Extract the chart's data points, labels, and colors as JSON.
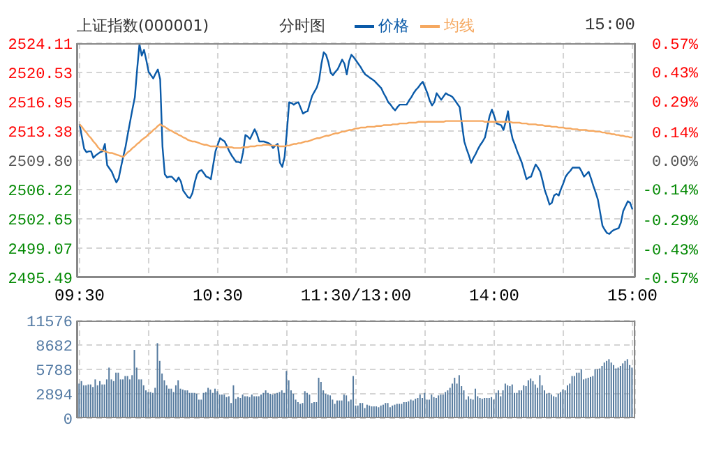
{
  "chart_data": [
    {
      "type": "line",
      "title": "上证指数(000001)",
      "subtitle": "分时图",
      "annotations": [
        "15:00"
      ],
      "legend": "top",
      "grid": true,
      "categories": [
        "09:30",
        null,
        null,
        null,
        null,
        null,
        null,
        null,
        null,
        null,
        null,
        null,
        null,
        null,
        null,
        null,
        null,
        null,
        null,
        null,
        null,
        null,
        null,
        null,
        null,
        null,
        null,
        null,
        null,
        null,
        null,
        null,
        null,
        null,
        null,
        null,
        null,
        null,
        null,
        null,
        null,
        null,
        null,
        null,
        null,
        null,
        null,
        null,
        null,
        null,
        null,
        null,
        null,
        null,
        null,
        null,
        null,
        null,
        null,
        null,
        "10:30",
        null,
        null,
        null,
        null,
        null,
        null,
        null,
        null,
        null,
        null,
        null,
        null,
        null,
        null,
        null,
        null,
        null,
        null,
        null,
        null,
        null,
        null,
        null,
        null,
        null,
        null,
        null,
        null,
        null,
        null,
        null,
        null,
        null,
        null,
        null,
        null,
        null,
        null,
        null,
        null,
        null,
        null,
        null,
        null,
        null,
        null,
        null,
        null,
        null,
        null,
        null,
        null,
        null,
        null,
        null,
        null,
        null,
        null,
        null,
        "11:30/13:00",
        null,
        null,
        null,
        null,
        null,
        null,
        null,
        null,
        null,
        null,
        null,
        null,
        null,
        null,
        null,
        null,
        null,
        null,
        null,
        null,
        null,
        null,
        null,
        null,
        null,
        null,
        null,
        null,
        null,
        null,
        null,
        null,
        null,
        null,
        null,
        null,
        null,
        null,
        null,
        null,
        null,
        null,
        null,
        null,
        null,
        null,
        null,
        null,
        null,
        null,
        null,
        null,
        null,
        null,
        null,
        null,
        null,
        null,
        null,
        "14:00",
        null,
        null,
        null,
        null,
        null,
        null,
        null,
        null,
        null,
        null,
        null,
        null,
        null,
        null,
        null,
        null,
        null,
        null,
        null,
        null,
        null,
        null,
        null,
        null,
        null,
        null,
        null,
        null,
        null,
        null,
        null,
        null,
        null,
        null,
        null,
        null,
        null,
        null,
        null,
        null,
        null,
        null,
        null,
        null,
        null,
        null,
        null,
        null,
        null,
        null,
        null,
        null,
        null,
        null,
        null,
        null,
        null,
        null,
        null,
        "15:00"
      ],
      "ylim": [
        2495.49,
        2524.11
      ],
      "yticks": [
        {
          "value": 2495.49,
          "label": "2495.49"
        },
        {
          "value": 2499.07,
          "label": "2499.07"
        },
        {
          "value": 2502.65,
          "label": "2502.65"
        },
        {
          "value": 2506.22,
          "label": "2506.22"
        },
        {
          "value": 2509.8,
          "label": "2509.80"
        },
        {
          "value": 2513.38,
          "label": "2513.38"
        },
        {
          "value": 2516.95,
          "label": "2516.95"
        },
        {
          "value": 2520.53,
          "label": "2520.53"
        },
        {
          "value": 2524.11,
          "label": "2524.11"
        }
      ],
      "y2lim": [
        -0.57,
        0.57
      ],
      "y2ticks": [
        {
          "value": -0.57,
          "label": "-0.57%"
        },
        {
          "value": -0.43,
          "label": "-0.43%"
        },
        {
          "value": -0.29,
          "label": "-0.29%"
        },
        {
          "value": -0.14,
          "label": "-0.14%"
        },
        {
          "value": 0,
          "label": "0.00%"
        },
        {
          "value": 0.14,
          "label": "0.14%"
        },
        {
          "value": 0.29,
          "label": "0.29%"
        },
        {
          "value": 0.43,
          "label": "0.43%"
        },
        {
          "value": 0.57,
          "label": "0.57%"
        }
      ],
      "series": [
        {
          "name": "价格",
          "color": "#0a5aa8",
          "values": [
            2514.2,
            2512.7,
            2511.2,
            2510.8,
            2510.9,
            2510.9,
            2510.1,
            2510.4,
            2510.6,
            2510.8,
            2510.9,
            2511.8,
            2509.2,
            2508.8,
            2508.4,
            2507.7,
            2507.1,
            2507.6,
            2509.0,
            2510.3,
            2511.5,
            2513.1,
            2514.6,
            2516.1,
            2517.5,
            2520.9,
            2524.0,
            2522.6,
            2523.3,
            2522.0,
            2520.6,
            2520.2,
            2519.8,
            2520.4,
            2520.9,
            2519.7,
            2511.5,
            2508.1,
            2507.7,
            2507.8,
            2507.8,
            2507.5,
            2507.2,
            2507.7,
            2507.2,
            2506.1,
            2505.7,
            2505.3,
            2505.2,
            2505.8,
            2507.1,
            2508.1,
            2508.5,
            2508.6,
            2508.2,
            2507.8,
            2507.7,
            2507.5,
            2509.2,
            2510.9,
            2511.7,
            2512.5,
            2512.3,
            2512.1,
            2511.5,
            2510.9,
            2510.4,
            2510.0,
            2509.6,
            2509.6,
            2509.5,
            2510.8,
            2512.9,
            2512.7,
            2512.4,
            2513.0,
            2513.6,
            2513.0,
            2512.1,
            2512.1,
            2512.1,
            2512.0,
            2511.9,
            2511.7,
            2511.3,
            2511.6,
            2511.8,
            2509.5,
            2509.0,
            2510.2,
            2513.3,
            2516.9,
            2516.8,
            2516.6,
            2516.8,
            2516.9,
            2516.2,
            2515.5,
            2515.7,
            2515.8,
            2516.8,
            2517.7,
            2518.2,
            2518.7,
            2519.6,
            2521.6,
            2523.0,
            2522.7,
            2521.8,
            2520.5,
            2520.2,
            2520.6,
            2520.9,
            2521.5,
            2522.1,
            2521.6,
            2520.3,
            2521.9,
            2522.7,
            2522.4,
            2522.0,
            2521.6,
            2521.2,
            2520.7,
            2520.3,
            2520.1,
            2519.9,
            2519.7,
            2519.5,
            2519.2,
            2518.9,
            2518.6,
            2518.0,
            2517.5,
            2516.9,
            2516.6,
            2516.2,
            2515.9,
            2516.3,
            2516.6,
            2516.6,
            2516.6,
            2516.6,
            2517.1,
            2517.5,
            2518.0,
            2518.4,
            2518.7,
            2519.1,
            2519.4,
            2518.7,
            2518.0,
            2517.1,
            2516.5,
            2516.9,
            2518.0,
            2517.6,
            2517.2,
            2517.6,
            2518.0,
            2517.8,
            2517.7,
            2517.5,
            2517.1,
            2516.7,
            2516.3,
            2514.2,
            2512.1,
            2511.2,
            2510.4,
            2509.5,
            2510.1,
            2510.6,
            2511.2,
            2511.7,
            2512.1,
            2512.6,
            2513.9,
            2515.2,
            2516.0,
            2515.2,
            2514.3,
            2514.2,
            2514.1,
            2513.5,
            2514.5,
            2515.8,
            2513.7,
            2512.4,
            2511.7,
            2510.9,
            2510.2,
            2509.5,
            2508.5,
            2507.5,
            2507.7,
            2507.8,
            2508.6,
            2509.3,
            2508.9,
            2508.4,
            2507.3,
            2506.1,
            2505.3,
            2504.4,
            2504.6,
            2505.5,
            2505.7,
            2505.5,
            2506.3,
            2507.0,
            2507.8,
            2508.2,
            2508.5,
            2508.9,
            2508.9,
            2508.9,
            2508.9,
            2508.4,
            2507.8,
            2508.1,
            2508.4,
            2507.6,
            2506.7,
            2505.9,
            2505.0,
            2503.4,
            2501.8,
            2501.3,
            2500.9,
            2500.8,
            2501.1,
            2501.3,
            2501.4,
            2501.5,
            2502.2,
            2503.6,
            2504.2,
            2504.8,
            2504.6,
            2503.8
          ]
        },
        {
          "name": "均线",
          "color": "#f5a860",
          "values": [
            2514.2,
            2513.9,
            2513.5,
            2513.2,
            2512.8,
            2512.5,
            2512.1,
            2511.8,
            2511.4,
            2511.1,
            2511.0,
            2510.9,
            2510.8,
            2510.7,
            2510.7,
            2510.6,
            2510.5,
            2510.4,
            2510.3,
            2510.2,
            2510.5,
            2510.8,
            2511.0,
            2511.3,
            2511.5,
            2511.8,
            2512.0,
            2512.3,
            2512.5,
            2512.7,
            2513.0,
            2513.2,
            2513.5,
            2513.7,
            2514.0,
            2514.2,
            2514.0,
            2513.9,
            2513.7,
            2513.5,
            2513.4,
            2513.2,
            2513.1,
            2512.9,
            2512.8,
            2512.6,
            2512.5,
            2512.3,
            2512.2,
            2512.1,
            2512.1,
            2512.0,
            2511.9,
            2511.8,
            2511.7,
            2511.7,
            2511.6,
            2511.5,
            2511.5,
            2511.5,
            2511.5,
            2511.4,
            2511.4,
            2511.4,
            2511.4,
            2511.4,
            2511.4,
            2511.3,
            2511.3,
            2511.3,
            2511.3,
            2511.4,
            2511.4,
            2511.4,
            2511.5,
            2511.5,
            2511.5,
            2511.6,
            2511.6,
            2511.6,
            2511.7,
            2511.7,
            2511.7,
            2511.6,
            2511.6,
            2511.6,
            2511.6,
            2511.5,
            2511.5,
            2511.5,
            2511.6,
            2511.6,
            2511.7,
            2511.8,
            2511.8,
            2511.9,
            2511.9,
            2512.0,
            2512.1,
            2512.1,
            2512.2,
            2512.3,
            2512.4,
            2512.5,
            2512.5,
            2512.6,
            2512.7,
            2512.8,
            2512.8,
            2512.9,
            2513.0,
            2513.1,
            2513.1,
            2513.2,
            2513.3,
            2513.3,
            2513.4,
            2513.5,
            2513.5,
            2513.6,
            2513.7,
            2513.7,
            2513.8,
            2513.8,
            2513.8,
            2513.9,
            2513.9,
            2513.9,
            2513.9,
            2514.0,
            2514.0,
            2514.0,
            2514.1,
            2514.1,
            2514.1,
            2514.1,
            2514.2,
            2514.2,
            2514.2,
            2514.3,
            2514.3,
            2514.3,
            2514.3,
            2514.4,
            2514.4,
            2514.4,
            2514.4,
            2514.5,
            2514.5,
            2514.5,
            2514.5,
            2514.5,
            2514.5,
            2514.5,
            2514.5,
            2514.5,
            2514.5,
            2514.5,
            2514.5,
            2514.6,
            2514.6,
            2514.6,
            2514.6,
            2514.6,
            2514.6,
            2514.6,
            2514.6,
            2514.6,
            2514.6,
            2514.6,
            2514.6,
            2514.6,
            2514.6,
            2514.6,
            2514.6,
            2514.6,
            2514.5,
            2514.5,
            2514.5,
            2514.5,
            2514.5,
            2514.5,
            2514.5,
            2514.5,
            2514.5,
            2514.5,
            2514.5,
            2514.5,
            2514.4,
            2514.4,
            2514.4,
            2514.4,
            2514.3,
            2514.3,
            2514.3,
            2514.2,
            2514.2,
            2514.2,
            2514.2,
            2514.1,
            2514.1,
            2514.1,
            2514.0,
            2514.0,
            2514.0,
            2513.9,
            2513.9,
            2513.9,
            2513.8,
            2513.8,
            2513.8,
            2513.7,
            2513.7,
            2513.7,
            2513.6,
            2513.6,
            2513.6,
            2513.5,
            2513.5,
            2513.5,
            2513.5,
            2513.4,
            2513.4,
            2513.4,
            2513.3,
            2513.3,
            2513.3,
            2513.2,
            2513.2,
            2513.1,
            2513.1,
            2513.0,
            2513.0,
            2512.9,
            2512.9,
            2512.8,
            2512.8,
            2512.7,
            2512.7,
            2512.6,
            2512.6
          ]
        }
      ]
    },
    {
      "type": "bar",
      "grid": true,
      "tick_labels": "y",
      "categories": [
        null,
        null,
        null,
        null,
        null,
        null,
        null,
        null,
        null,
        null,
        null,
        null,
        null,
        null,
        null,
        null,
        null,
        null,
        null,
        null,
        null,
        null,
        null,
        null,
        null,
        null,
        null,
        null,
        null,
        null,
        null,
        null,
        null,
        null,
        null,
        null,
        null,
        null,
        null,
        null,
        null,
        null,
        null,
        null,
        null,
        null,
        null,
        null,
        null,
        null,
        null,
        null,
        null,
        null,
        null,
        null,
        null,
        null,
        null,
        null,
        null,
        null,
        null,
        null,
        null,
        null,
        null,
        null,
        null,
        null,
        null,
        null,
        null,
        null,
        null,
        null,
        null,
        null,
        null,
        null,
        null,
        null,
        null,
        null,
        null,
        null,
        null,
        null,
        null,
        null,
        null,
        null,
        null,
        null,
        null,
        null,
        null,
        null,
        null,
        null,
        null,
        null,
        null,
        null,
        null,
        null,
        null,
        null,
        null,
        null,
        null,
        null,
        null,
        null,
        null,
        null,
        null,
        null,
        null,
        null,
        null,
        null,
        null,
        null,
        null,
        null,
        null,
        null,
        null,
        null,
        null,
        null,
        null,
        null,
        null,
        null,
        null,
        null,
        null,
        null,
        null,
        null,
        null,
        null,
        null,
        null,
        null,
        null,
        null,
        null,
        null,
        null,
        null,
        null,
        null,
        null,
        null,
        null,
        null,
        null,
        null,
        null,
        null,
        null,
        null,
        null,
        null,
        null,
        null,
        null,
        null,
        null,
        null,
        null,
        null,
        null,
        null,
        null,
        null,
        null,
        null,
        null,
        null,
        null,
        null,
        null,
        null,
        null,
        null,
        null,
        null,
        null,
        null,
        null,
        null,
        null,
        null,
        null,
        null,
        null,
        null,
        null,
        null,
        null,
        null,
        null,
        null,
        null,
        null,
        null,
        null,
        null,
        null,
        null,
        null,
        null,
        null,
        null,
        null,
        null,
        null,
        null,
        null,
        null,
        null,
        null,
        null,
        null,
        null,
        null,
        null,
        null,
        null,
        null,
        null,
        null,
        null,
        null,
        null,
        null,
        null
      ],
      "ylim": [
        0,
        11576
      ],
      "yticks": [
        0,
        2894,
        5788,
        8682,
        11576
      ],
      "series": [
        {
          "color": "#557a9e",
          "values": [
            4100,
            4400,
            3900,
            3900,
            4000,
            4000,
            3700,
            4600,
            3900,
            4400,
            4000,
            4000,
            4600,
            6000,
            4600,
            4400,
            5400,
            5400,
            4600,
            4600,
            5000,
            5000,
            4600,
            5100,
            8100,
            6000,
            4600,
            4600,
            3900,
            3300,
            3100,
            3100,
            3000,
            3600,
            8900,
            6800,
            5300,
            4500,
            3900,
            3500,
            3500,
            3100,
            3900,
            4500,
            3500,
            3400,
            3300,
            3300,
            3000,
            3000,
            3000,
            2900,
            2200,
            2200,
            3000,
            3100,
            3600,
            3400,
            3000,
            3500,
            3200,
            2800,
            2800,
            2800,
            2500,
            2600,
            1800,
            3900,
            2300,
            2500,
            2400,
            2800,
            2600,
            2600,
            2500,
            2800,
            2600,
            2600,
            2600,
            2800,
            3000,
            3300,
            3000,
            2900,
            2800,
            2900,
            3000,
            3100,
            3300,
            3000,
            5600,
            4500,
            3300,
            2900,
            2200,
            1900,
            1700,
            1800,
            3200,
            3000,
            2800,
            1800,
            1900,
            1900,
            4800,
            4300,
            3300,
            2900,
            2800,
            2700,
            2200,
            1700,
            2100,
            2100,
            2100,
            2800,
            2700,
            2000,
            2200,
            5000,
            1500,
            1500,
            1800,
            1800,
            1200,
            1600,
            1500,
            1400,
            1400,
            1400,
            1300,
            1500,
            1600,
            1800,
            1800,
            1300,
            1500,
            1600,
            1700,
            1700,
            1700,
            1900,
            1900,
            2000,
            2200,
            2100,
            2300,
            2400,
            2800,
            2400,
            3000,
            2200,
            2200,
            2800,
            2500,
            2400,
            2700,
            2800,
            2800,
            3100,
            3300,
            3600,
            4100,
            4800,
            4100,
            5100,
            3800,
            3300,
            2200,
            2600,
            2300,
            2200,
            3500,
            2600,
            2400,
            2300,
            2400,
            2400,
            2400,
            2500,
            2200,
            3000,
            3300,
            2600,
            3300,
            4100,
            3900,
            3800,
            4000,
            3000,
            3000,
            3300,
            3300,
            3900,
            3800,
            4500,
            4700,
            4400,
            4000,
            3600,
            5100,
            3900,
            3300,
            2900,
            3000,
            2800,
            2600,
            2500,
            2900,
            3100,
            3400,
            3300,
            3900,
            4100,
            5000,
            5000,
            5400,
            5400,
            5800,
            4600,
            4700,
            4800,
            4900,
            5000,
            5800,
            5800,
            5900,
            6200,
            6600,
            6800,
            7000,
            6600,
            6300,
            5900,
            6000,
            6200,
            6500,
            6800,
            7000,
            6300,
            6000
          ]
        }
      ]
    }
  ]
}
